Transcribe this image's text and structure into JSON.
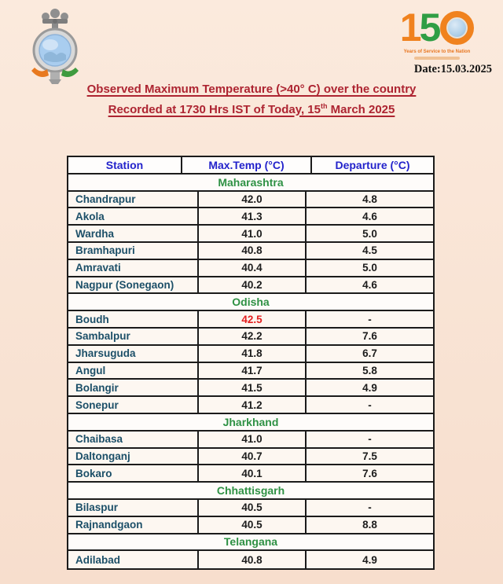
{
  "header": {
    "date_label": "Date:15.03.2025",
    "logo150": {
      "digit1": "1",
      "digit5": "5",
      "caption": "Years of Service to the Nation"
    },
    "title_line1": "Observed Maximum Temperature (>40° C) over the country",
    "title_line2_prefix": "Recorded at 1730 Hrs IST of Today, 15",
    "title_line2_sup": "th",
    "title_line2_suffix": " March 2025"
  },
  "table": {
    "columns": [
      "Station",
      "Max.Temp (°C)",
      "Departure (°C)"
    ],
    "sections": [
      {
        "state": "Maharashtra",
        "rows": [
          {
            "station": "Chandrapur",
            "temp": "42.0",
            "departure": "4.8"
          },
          {
            "station": "Akola",
            "temp": "41.3",
            "departure": "4.6"
          },
          {
            "station": "Wardha",
            "temp": "41.0",
            "departure": "5.0"
          },
          {
            "station": "Bramhapuri",
            "temp": "40.8",
            "departure": "4.5"
          },
          {
            "station": "Amravati",
            "temp": "40.4",
            "departure": "5.0"
          },
          {
            "station": "Nagpur (Sonegaon)",
            "temp": "40.2",
            "departure": "4.6"
          }
        ]
      },
      {
        "state": "Odisha",
        "rows": [
          {
            "station": "Boudh",
            "temp": "42.5",
            "departure": "-",
            "temp_highlight": true
          },
          {
            "station": "Sambalpur",
            "temp": "42.2",
            "departure": "7.6"
          },
          {
            "station": "Jharsuguda",
            "temp": "41.8",
            "departure": "6.7"
          },
          {
            "station": "Angul",
            "temp": "41.7",
            "departure": "5.8"
          },
          {
            "station": "Bolangir",
            "temp": "41.5",
            "departure": "4.9"
          },
          {
            "station": "Sonepur",
            "temp": "41.2",
            "departure": "-"
          }
        ]
      },
      {
        "state": "Jharkhand",
        "rows": [
          {
            "station": "Chaibasa",
            "temp": "41.0",
            "departure": "-"
          },
          {
            "station": "Daltonganj",
            "temp": "40.7",
            "departure": "7.5"
          },
          {
            "station": "Bokaro",
            "temp": "40.1",
            "departure": "7.6"
          }
        ]
      },
      {
        "state": "Chhattisgarh",
        "rows": [
          {
            "station": "Bilaspur",
            "temp": "40.5",
            "departure": "-"
          },
          {
            "station": "Rajnandgaon",
            "temp": "40.5",
            "departure": "8.8"
          }
        ]
      },
      {
        "state": "Telangana",
        "rows": [
          {
            "station": "Adilabad",
            "temp": "40.8",
            "departure": "4.9"
          }
        ]
      }
    ]
  },
  "colors": {
    "title-red": "#ad2431",
    "header-blue": "#2323cb",
    "state-green": "#2e9144",
    "station-teal": "#1c4f68",
    "hot-red": "#e31e1e",
    "saffron": "#f0821e",
    "india-green": "#2f9e44",
    "globe-blue": "#aecfe8",
    "line": "#1b1b1b",
    "cell-bg": "#fdf7f1"
  }
}
